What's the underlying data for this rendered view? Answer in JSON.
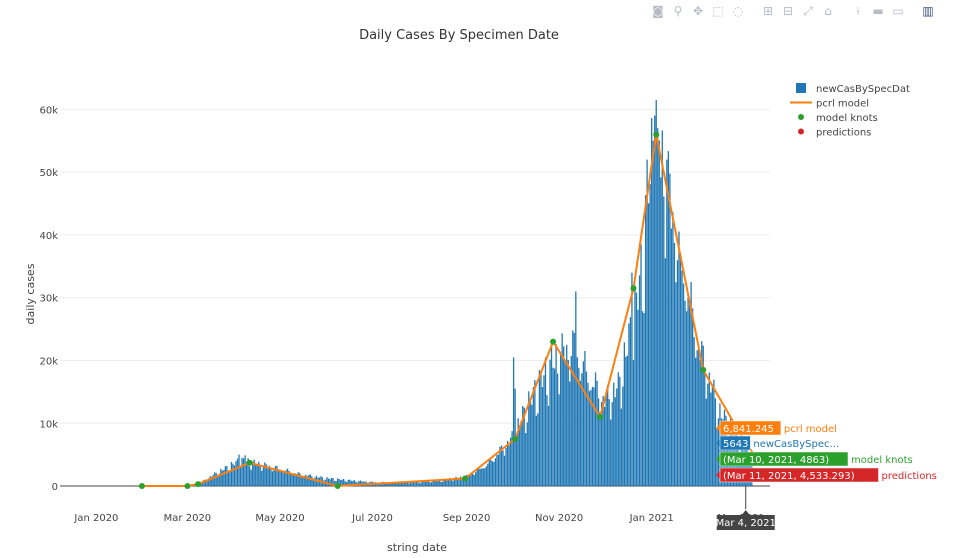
{
  "modebar": {
    "buttons": [
      {
        "name": "camera-icon",
        "glyph": "◙"
      },
      {
        "name": "zoom-icon",
        "glyph": "⚲"
      },
      {
        "name": "pan-icon",
        "glyph": "✥"
      },
      {
        "name": "box-select-icon",
        "glyph": "⬚"
      },
      {
        "name": "lasso-select-icon",
        "glyph": "◌"
      },
      {
        "name": "sep",
        "glyph": ""
      },
      {
        "name": "zoom-in-icon",
        "glyph": "⊞"
      },
      {
        "name": "zoom-out-icon",
        "glyph": "⊟"
      },
      {
        "name": "autoscale-icon",
        "glyph": "⤢"
      },
      {
        "name": "reset-axes-icon",
        "glyph": "⌂"
      },
      {
        "name": "sep",
        "glyph": ""
      },
      {
        "name": "spike-lines-icon",
        "glyph": "⟊"
      },
      {
        "name": "hover-closest-icon",
        "glyph": "▬"
      },
      {
        "name": "hover-compare-icon",
        "glyph": "▭"
      },
      {
        "name": "sep",
        "glyph": ""
      },
      {
        "name": "plotly-logo-icon",
        "glyph": "▥"
      }
    ]
  },
  "colors": {
    "bars": "#1f77b4",
    "model_line": "#ff7f0e",
    "knots": "#2ca02c",
    "predictions": "#d62728",
    "grid": "#eeeeee",
    "axis_text": "#444444",
    "hover_date_bg": "#444444"
  },
  "chart_data": {
    "type": "bar",
    "title": "Daily Cases By Specimen Date",
    "xlabel": "string date",
    "ylabel": "daily cases",
    "x_range": [
      "2019-12-08",
      "2021-03-20"
    ],
    "ylim": [
      -3500,
      65000
    ],
    "y_ticks": [
      0,
      10000,
      20000,
      30000,
      40000,
      50000,
      60000
    ],
    "y_tick_labels": [
      "0",
      "10k",
      "20k",
      "30k",
      "40k",
      "50k",
      "60k"
    ],
    "x_ticks": [
      "2020-01-01",
      "2020-03-01",
      "2020-05-01",
      "2020-07-01",
      "2020-09-01",
      "2020-11-01",
      "2021-01-01"
    ],
    "x_tick_labels": [
      "Jan 2020",
      "Mar 2020",
      "May 2020",
      "Jul 2020",
      "Sep 2020",
      "Nov 2020",
      "Jan 2021"
    ],
    "x_tick_partial": "Mar 2021",
    "grid": true,
    "legend_position": "top-right",
    "bar_series": {
      "name": "newCasBySpecDat",
      "anchors": [
        [
          "2020-01-30",
          0
        ],
        [
          "2020-03-01",
          50
        ],
        [
          "2020-03-10",
          600
        ],
        [
          "2020-03-20",
          2000
        ],
        [
          "2020-03-31",
          3400
        ],
        [
          "2020-04-05",
          4000
        ],
        [
          "2020-04-10",
          3800
        ],
        [
          "2020-04-20",
          3300
        ],
        [
          "2020-05-01",
          2700
        ],
        [
          "2020-05-15",
          1800
        ],
        [
          "2020-06-01",
          1200
        ],
        [
          "2020-06-15",
          900
        ],
        [
          "2020-07-01",
          600
        ],
        [
          "2020-07-15",
          550
        ],
        [
          "2020-08-01",
          650
        ],
        [
          "2020-08-15",
          900
        ],
        [
          "2020-09-01",
          1500
        ],
        [
          "2020-09-15",
          3500
        ],
        [
          "2020-10-01",
          7500
        ],
        [
          "2020-10-10",
          12000
        ],
        [
          "2020-10-20",
          16500
        ],
        [
          "2020-11-01",
          20500
        ],
        [
          "2020-11-10",
          22000
        ],
        [
          "2020-11-20",
          17500
        ],
        [
          "2020-12-01",
          13500
        ],
        [
          "2020-12-10",
          15500
        ],
        [
          "2020-12-20",
          26000
        ],
        [
          "2020-12-25",
          33000
        ],
        [
          "2020-12-30",
          47000
        ],
        [
          "2021-01-04",
          56000
        ],
        [
          "2021-01-10",
          49000
        ],
        [
          "2021-01-20",
          36000
        ],
        [
          "2021-02-01",
          22000
        ],
        [
          "2021-02-15",
          11500
        ],
        [
          "2021-03-01",
          7000
        ],
        [
          "2021-03-04",
          5643
        ],
        [
          "2021-03-08",
          5000
        ]
      ],
      "spikes": [
        [
          "2020-04-04",
          5000
        ],
        [
          "2020-04-08",
          4900
        ],
        [
          "2020-10-02",
          20500
        ],
        [
          "2020-10-03",
          15500
        ],
        [
          "2020-10-27",
          23000
        ],
        [
          "2020-11-12",
          31000
        ],
        [
          "2020-11-06",
          22500
        ],
        [
          "2020-12-19",
          34000
        ],
        [
          "2021-01-03",
          59000
        ],
        [
          "2021-01-04",
          61500
        ],
        [
          "2021-01-05",
          57000
        ],
        [
          "2021-01-02",
          55000
        ],
        [
          "2021-01-11",
          52000
        ],
        [
          "2020-12-29",
          52000
        ],
        [
          "2021-01-20",
          37000
        ],
        [
          "2021-01-25",
          30000
        ]
      ],
      "last_date": "2021-03-08"
    },
    "model_series": {
      "name": "pcrl model",
      "x": [
        "2020-01-31",
        "2020-03-01",
        "2020-03-08",
        "2020-04-11",
        "2020-06-08",
        "2020-08-31",
        "2020-10-03",
        "2020-10-28",
        "2020-11-28",
        "2020-12-20",
        "2021-01-04",
        "2021-02-04",
        "2021-03-04",
        "2021-03-10"
      ],
      "y": [
        0,
        0,
        300,
        3700,
        0,
        1200,
        7500,
        23000,
        11000,
        31500,
        56000,
        18500,
        6841,
        4863
      ]
    },
    "knots_series": {
      "name": "model knots",
      "x": [
        "2020-01-31",
        "2020-03-01",
        "2020-03-08",
        "2020-04-11",
        "2020-06-08",
        "2020-08-31",
        "2020-10-03",
        "2020-10-28",
        "2020-11-28",
        "2020-12-20",
        "2021-01-04",
        "2021-02-04",
        "2021-03-10"
      ],
      "y": [
        0,
        0,
        300,
        3700,
        0,
        1200,
        7500,
        23000,
        11000,
        31500,
        56000,
        18500,
        4863
      ]
    },
    "predictions_series": {
      "name": "predictions",
      "x": [
        "2021-03-11",
        "2021-03-12",
        "2021-03-13"
      ],
      "y": [
        4533,
        4300,
        4050
      ]
    },
    "hover": {
      "date_label": "Mar 4, 2021",
      "labels": [
        {
          "text": "6,841.245",
          "series": "pcrl model",
          "series_label": "pcrl model",
          "color_key": "model_line"
        },
        {
          "text": "5643",
          "series": "newCasBySpecDat",
          "series_label": "newCasBySpec...",
          "color_key": "bars"
        },
        {
          "text": "(Mar 10, 2021, 4863)",
          "series": "model knots",
          "series_label": "model knots",
          "color_key": "knots"
        },
        {
          "text": "(Mar 11, 2021, 4,533.293)",
          "series": "predictions",
          "series_label": "predictions",
          "color_key": "predictions"
        }
      ]
    }
  }
}
